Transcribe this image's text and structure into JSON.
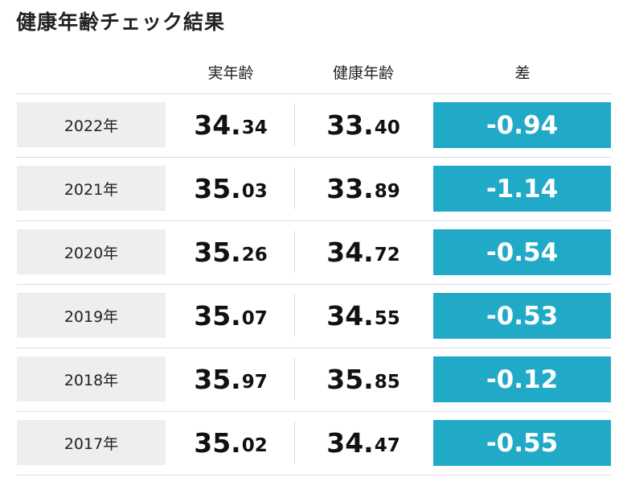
{
  "title": "健康年齢チェック結果",
  "headers": {
    "real_age": "実年齢",
    "health_age": "健康年齢",
    "difference": "差"
  },
  "accent_color": "#21a9c8",
  "rows": [
    {
      "year": "2022年",
      "real_int": "34.",
      "real_dec": "34",
      "health_int": "33.",
      "health_dec": "40",
      "diff": "-0.94"
    },
    {
      "year": "2021年",
      "real_int": "35.",
      "real_dec": "03",
      "health_int": "33.",
      "health_dec": "89",
      "diff": "-1.14"
    },
    {
      "year": "2020年",
      "real_int": "35.",
      "real_dec": "26",
      "health_int": "34.",
      "health_dec": "72",
      "diff": "-0.54"
    },
    {
      "year": "2019年",
      "real_int": "35.",
      "real_dec": "07",
      "health_int": "34.",
      "health_dec": "55",
      "diff": "-0.53"
    },
    {
      "year": "2018年",
      "real_int": "35.",
      "real_dec": "97",
      "health_int": "35.",
      "health_dec": "85",
      "diff": "-0.12"
    },
    {
      "year": "2017年",
      "real_int": "35.",
      "real_dec": "02",
      "health_int": "34.",
      "health_dec": "47",
      "diff": "-0.55"
    }
  ]
}
